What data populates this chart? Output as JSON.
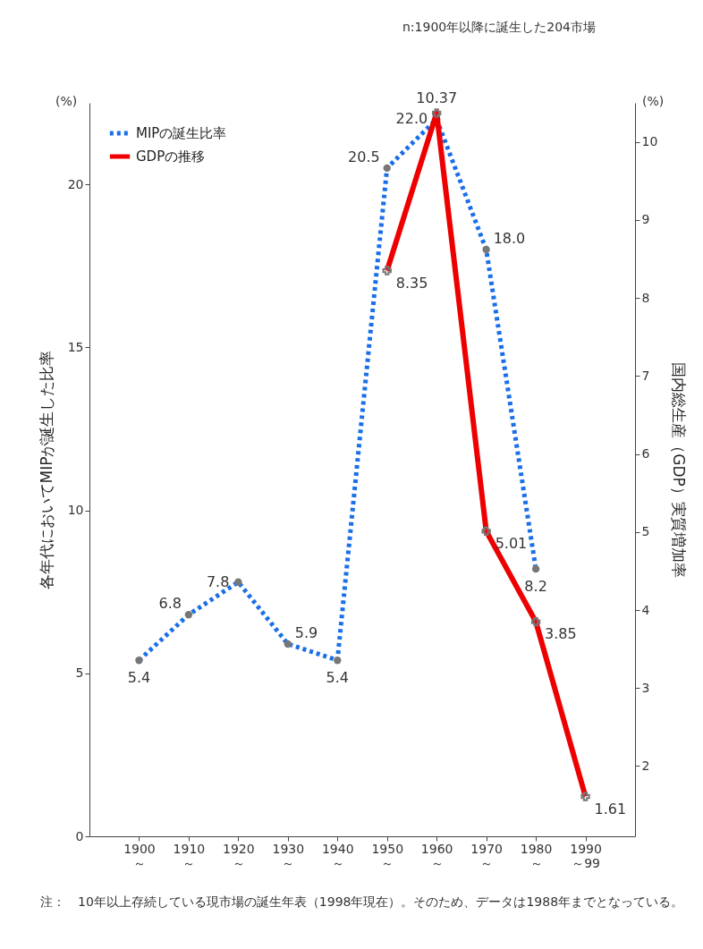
{
  "chart_data": {
    "type": "line",
    "categories": [
      "1900\n～",
      "1910\n～",
      "1920\n～",
      "1930\n～",
      "1940\n～",
      "1950\n～",
      "1960\n～",
      "1970\n～",
      "1980\n～",
      "1990\n～99"
    ],
    "series": [
      {
        "name": "MIPの誕生比率",
        "color": "#1a6fe8",
        "line_style": "dotted",
        "marker": "circle",
        "values": [
          5.4,
          6.8,
          7.8,
          5.9,
          5.4,
          20.5,
          22.0,
          18.0,
          8.2,
          null
        ],
        "value_labels": [
          "5.4",
          "6.8",
          "7.8",
          "5.9",
          "5.4",
          "20.5",
          "22.0",
          "18.0",
          "8.2",
          null
        ]
      },
      {
        "name": "GDPの推移",
        "color": "#ee0000",
        "line_style": "solid",
        "marker": "cross",
        "axis": "y2",
        "values": [
          null,
          null,
          null,
          null,
          null,
          8.35,
          10.37,
          5.01,
          3.85,
          1.61
        ],
        "value_labels": [
          null,
          null,
          null,
          null,
          null,
          "8.35",
          "10.37",
          "5.01",
          "3.85",
          "1.61"
        ]
      }
    ],
    "ylabel": "各年代においてMIPが誕生した比率",
    "y2label": "国内総生産（GDP）実質増加率",
    "ylim": [
      0,
      22.5
    ],
    "yticks": [
      0,
      5,
      10,
      15,
      20
    ],
    "y2lim": [
      1.1,
      10.5
    ],
    "y2ticks": [
      2,
      3,
      4,
      5,
      6,
      7,
      8,
      9,
      10
    ],
    "grid": false,
    "legend": "top left",
    "annotations": [
      "(%)",
      "(%)",
      "n:1900年以降に誕生した204市場",
      "注：　10年以上存続している現市場の誕生年表（1998年現在）。そのため、データは1988年までとなっている。"
    ]
  }
}
